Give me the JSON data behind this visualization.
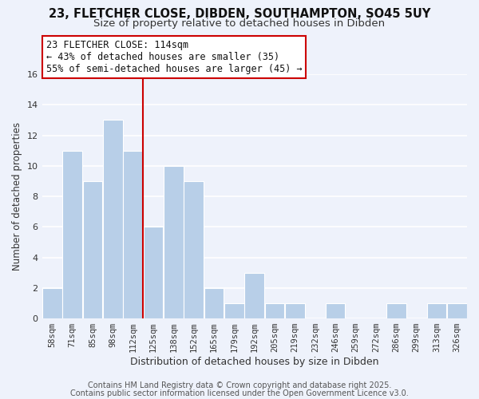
{
  "title": "23, FLETCHER CLOSE, DIBDEN, SOUTHAMPTON, SO45 5UY",
  "subtitle": "Size of property relative to detached houses in Dibden",
  "xlabel": "Distribution of detached houses by size in Dibden",
  "ylabel": "Number of detached properties",
  "categories": [
    "58sqm",
    "71sqm",
    "85sqm",
    "98sqm",
    "112sqm",
    "125sqm",
    "138sqm",
    "152sqm",
    "165sqm",
    "179sqm",
    "192sqm",
    "205sqm",
    "219sqm",
    "232sqm",
    "246sqm",
    "259sqm",
    "272sqm",
    "286sqm",
    "299sqm",
    "313sqm",
    "326sqm"
  ],
  "values": [
    2,
    11,
    9,
    13,
    11,
    6,
    10,
    9,
    2,
    1,
    3,
    1,
    1,
    0,
    1,
    0,
    0,
    1,
    0,
    1,
    1
  ],
  "bar_color": "#b8cfe8",
  "bar_edge_color": "#a0c0e0",
  "vline_color": "#cc0000",
  "vline_index": 4,
  "annotation_line1": "23 FLETCHER CLOSE: 114sqm",
  "annotation_line2": "← 43% of detached houses are smaller (35)",
  "annotation_line3": "55% of semi-detached houses are larger (45) →",
  "annotation_fontsize": 8.5,
  "ylim": [
    0,
    16
  ],
  "yticks": [
    0,
    2,
    4,
    6,
    8,
    10,
    12,
    14,
    16
  ],
  "background_color": "#eef2fb",
  "grid_color": "#ffffff",
  "footnote1": "Contains HM Land Registry data © Crown copyright and database right 2025.",
  "footnote2": "Contains public sector information licensed under the Open Government Licence v3.0.",
  "title_fontsize": 10.5,
  "subtitle_fontsize": 9.5,
  "xlabel_fontsize": 9,
  "ylabel_fontsize": 8.5,
  "tick_fontsize": 7.5,
  "footnote_fontsize": 7
}
